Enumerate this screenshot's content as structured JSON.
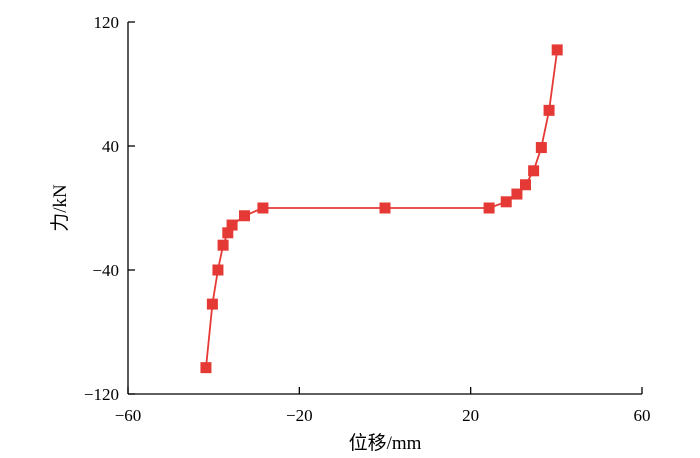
{
  "chart_data": {
    "type": "line",
    "title": "",
    "xlabel": "位移/mm",
    "ylabel": "力/kN",
    "xlim": [
      -60,
      60
    ],
    "ylim": [
      -120,
      120
    ],
    "x_ticks": [
      "−60",
      "−20",
      "20",
      "60"
    ],
    "y_ticks": [
      "120",
      "40",
      "−40",
      "−120"
    ],
    "x_tick_values": [
      -60,
      -20,
      20,
      60
    ],
    "y_tick_values": [
      120,
      40,
      -40,
      -120
    ],
    "grid": false,
    "legend": "none",
    "series": [
      {
        "color": "#e53935",
        "marker": "square",
        "x": [
          -41.8,
          -40.3,
          -39.0,
          -37.8,
          -36.7,
          -35.7,
          -32.8,
          -28.5,
          0,
          24.3,
          28.3,
          30.8,
          32.8,
          34.7,
          36.5,
          38.3,
          40.2
        ],
        "y": [
          -103,
          -62,
          -40,
          -24,
          -16,
          -11,
          -5,
          0,
          0,
          0,
          4,
          9,
          15,
          24,
          39,
          63,
          102
        ]
      }
    ]
  }
}
